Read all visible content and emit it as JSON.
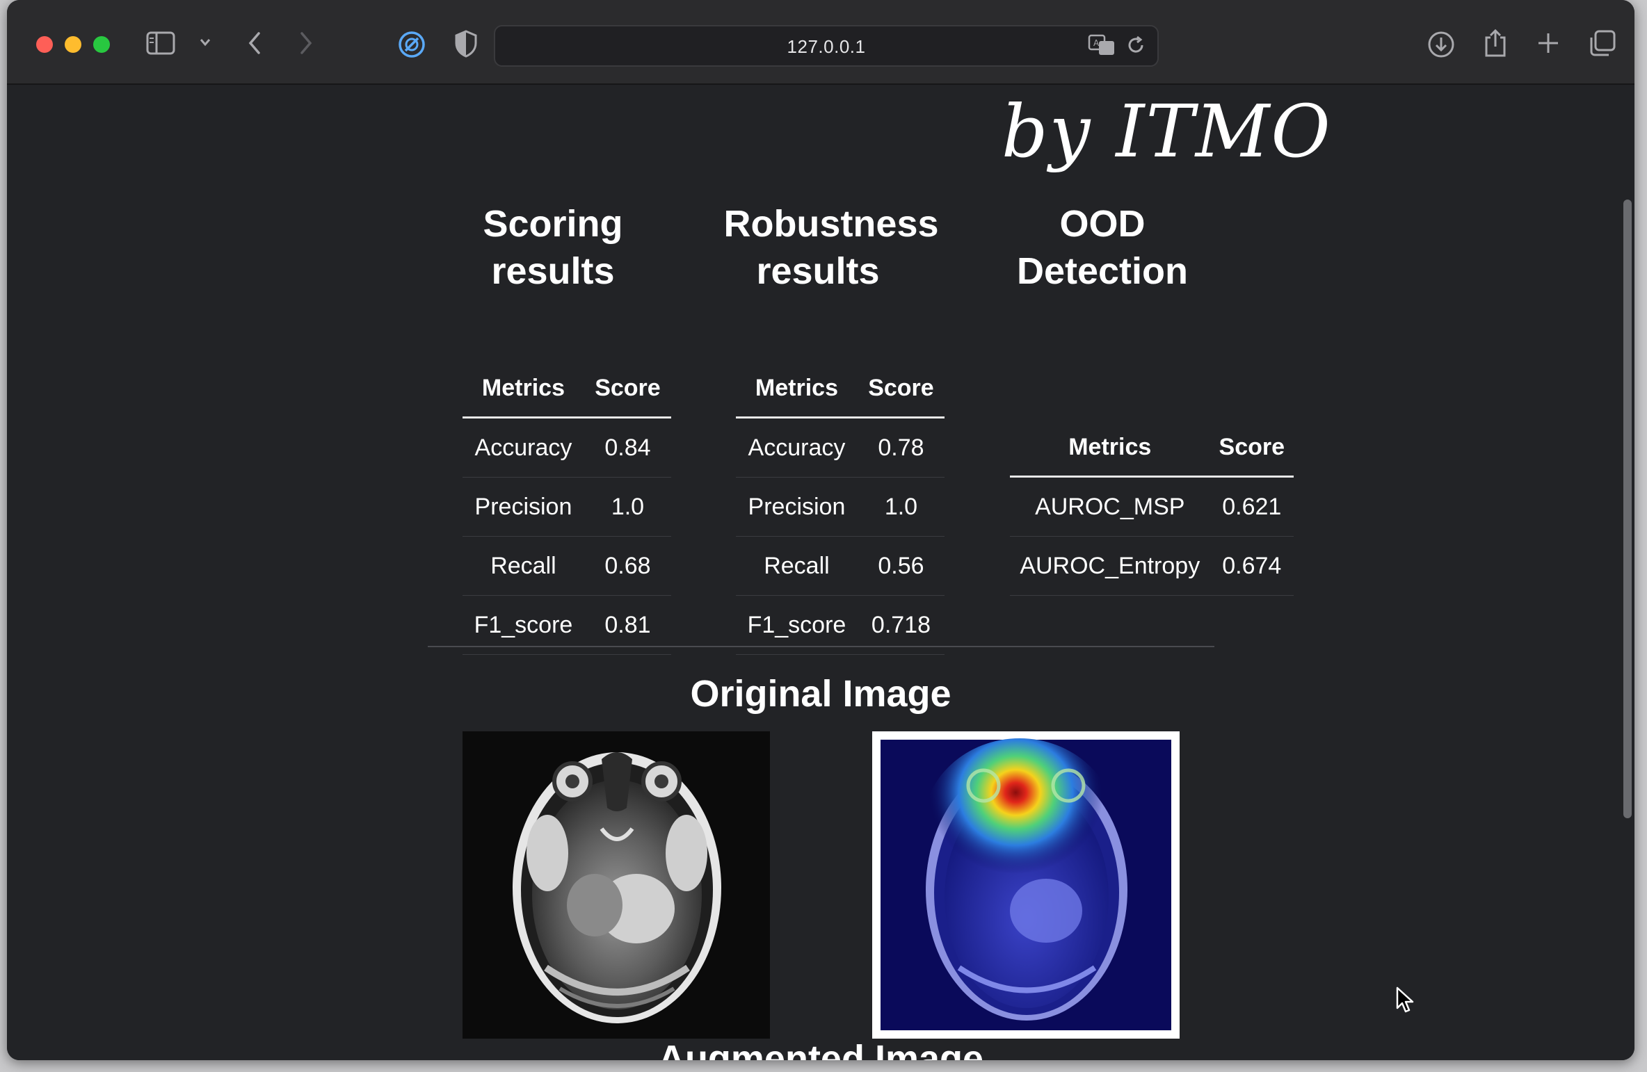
{
  "browser": {
    "url": "127.0.0.1",
    "icons": [
      "sidebar-icon",
      "chevron-down-icon",
      "back-icon",
      "forward-icon",
      "privacy-icon",
      "shield-icon",
      "translate-icon",
      "reload-icon",
      "download-icon",
      "share-icon",
      "new-tab-icon",
      "tab-overview-icon"
    ]
  },
  "page": {
    "brand": "by ITMO",
    "sections": {
      "scoring": {
        "title_line1": "Scoring",
        "title_line2": "results",
        "col_metrics": "Metrics",
        "col_score": "Score",
        "rows": [
          {
            "metric": "Accuracy",
            "score": "0.84"
          },
          {
            "metric": "Precision",
            "score": "1.0"
          },
          {
            "metric": "Recall",
            "score": "0.68"
          },
          {
            "metric": "F1_score",
            "score": "0.81"
          }
        ]
      },
      "robustness": {
        "title_line1": "Robustness",
        "title_line2": "results",
        "col_metrics": "Metrics",
        "col_score": "Score",
        "rows": [
          {
            "metric": "Accuracy",
            "score": "0.78"
          },
          {
            "metric": "Precision",
            "score": "1.0"
          },
          {
            "metric": "Recall",
            "score": "0.56"
          },
          {
            "metric": "F1_score",
            "score": "0.718"
          }
        ]
      },
      "ood": {
        "title_line1": "OOD",
        "title_line2": "Detection",
        "col_metrics": "Metrics",
        "col_score": "Score",
        "rows": [
          {
            "metric": "AUROC_MSP",
            "score": "0.621"
          },
          {
            "metric": "AUROC_Entropy",
            "score": "0.674"
          }
        ]
      }
    },
    "original_image_title": "Original Image",
    "augmented_image_title": "Augmented Image"
  },
  "colors": {
    "page_bg": "#222326",
    "toolbar_bg": "#2b2b2d",
    "text": "#ffffff",
    "heatmap_bg": "#0a0a5a"
  }
}
